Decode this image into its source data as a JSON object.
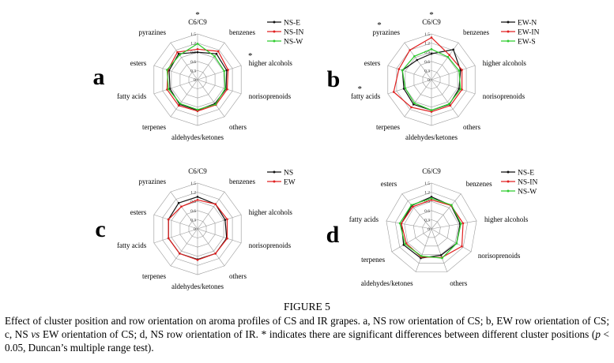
{
  "figure": {
    "title": "FIGURE 5",
    "caption_parts": [
      {
        "text": "Effect of cluster position and row orientation on aroma profiles of CS and IR grapes. a, NS row orientation of CS; b, EW row orientation of CS; c, NS "
      },
      {
        "text": "vs",
        "italic": true
      },
      {
        "text": " EW orientation of CS; d, NS row orientation of IR. * indicates there are significant differences between different cluster positions ("
      },
      {
        "text": "p",
        "italic": true
      },
      {
        "text": " < 0.05, Duncan’s multiple range test)."
      }
    ]
  },
  "chart_data": [
    {
      "type": "radar",
      "panel_label": "a",
      "axes": [
        "C6/C9",
        "benzenes",
        "higher alcohols",
        "norisoprenoids",
        "others",
        "aldehydes/ketones",
        "terpenes",
        "fatty acids",
        "esters",
        "pyrazines"
      ],
      "significant": [
        "C6/C9",
        "higher alcohols"
      ],
      "ticks": [
        "0",
        "0.3",
        "0.6",
        "0.9",
        "1.2",
        "1.5"
      ],
      "rmax": 1.5,
      "series": [
        {
          "name": "NS-E",
          "color": "#111111",
          "values": [
            0.9,
            1.05,
            1.0,
            0.98,
            0.97,
            1.0,
            1.0,
            0.95,
            0.98,
            1.05
          ]
        },
        {
          "name": "NS-IN",
          "color": "#e02020",
          "values": [
            1.0,
            1.15,
            1.05,
            1.02,
            1.02,
            1.03,
            1.05,
            1.05,
            1.02,
            1.12
          ]
        },
        {
          "name": "NS-W",
          "color": "#2ecc2e",
          "values": [
            1.18,
            0.95,
            0.92,
            0.95,
            1.0,
            0.98,
            0.97,
            1.0,
            1.05,
            1.0
          ]
        }
      ]
    },
    {
      "type": "radar",
      "panel_label": "b",
      "axes": [
        "C6/C9",
        "benzenes",
        "higher alcohols",
        "norisoprenoids",
        "others",
        "aldehydes/ketones",
        "terpenes",
        "fatty acids",
        "esters",
        "pyrazines"
      ],
      "significant": [
        "C6/C9",
        "pyrazines",
        "fatty acids"
      ],
      "ticks": [
        "0",
        "0.3",
        "0.6",
        "0.9",
        "1.2",
        "1.5"
      ],
      "rmax": 1.5,
      "series": [
        {
          "name": "EW-N",
          "color": "#111111",
          "values": [
            0.85,
            1.22,
            1.0,
            0.95,
            1.0,
            1.0,
            1.0,
            0.95,
            1.0,
            0.8
          ]
        },
        {
          "name": "EW-IN",
          "color": "#e02020",
          "values": [
            1.38,
            1.0,
            1.05,
            1.05,
            1.05,
            1.05,
            1.12,
            1.3,
            1.12,
            1.2
          ]
        },
        {
          "name": "EW-S",
          "color": "#2ecc2e",
          "values": [
            1.0,
            0.92,
            0.95,
            1.0,
            0.98,
            1.0,
            0.95,
            0.9,
            1.0,
            0.95
          ]
        }
      ]
    },
    {
      "type": "radar",
      "panel_label": "c",
      "axes": [
        "C6/C9",
        "benzenes",
        "higher alcohols",
        "norisoprenoids",
        "others",
        "aldehydes/ketones",
        "terpenes",
        "fatty acids",
        "esters",
        "pyrazines"
      ],
      "significant": [],
      "ticks": [
        "0",
        "0.3",
        "0.6",
        "0.9",
        "1.2",
        "1.5"
      ],
      "rmax": 1.5,
      "series": [
        {
          "name": "NS",
          "color": "#111111",
          "values": [
            1.05,
            1.0,
            0.95,
            1.0,
            1.0,
            1.0,
            1.0,
            1.0,
            1.0,
            1.05
          ]
        },
        {
          "name": "EW",
          "color": "#e02020",
          "values": [
            0.95,
            1.0,
            1.02,
            1.02,
            1.0,
            1.02,
            1.0,
            1.0,
            1.0,
            0.9
          ]
        }
      ]
    },
    {
      "type": "radar",
      "panel_label": "d",
      "axes": [
        "C6/C9",
        "benzenes",
        "higher alcohols",
        "norisoprenoids",
        "others",
        "aldehydes/ketones",
        "terpenes",
        "fatty acids",
        "esters"
      ],
      "significant": [],
      "ticks": [
        "0",
        "0.3",
        "0.6",
        "0.9",
        "1.2",
        "1.5"
      ],
      "rmax": 1.5,
      "series": [
        {
          "name": "NS-E",
          "color": "#111111",
          "values": [
            1.05,
            1.0,
            0.95,
            0.95,
            0.92,
            1.02,
            1.05,
            1.0,
            1.0
          ]
        },
        {
          "name": "NS-IN",
          "color": "#e02020",
          "values": [
            0.95,
            1.0,
            1.05,
            1.15,
            1.0,
            0.98,
            0.95,
            1.0,
            0.95
          ]
        },
        {
          "name": "NS-W",
          "color": "#2ecc2e",
          "values": [
            1.0,
            1.02,
            0.98,
            0.95,
            1.02,
            0.95,
            1.0,
            1.05,
            1.02
          ]
        }
      ]
    }
  ]
}
